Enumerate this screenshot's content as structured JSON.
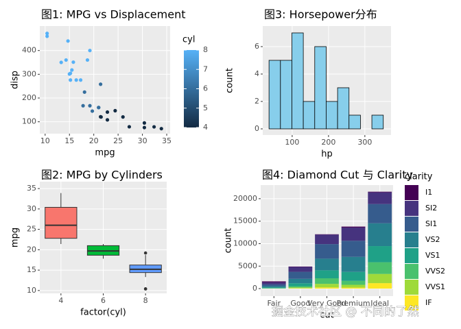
{
  "chart_data": [
    {
      "type": "scatter",
      "title": "图1: MPG vs Displacement",
      "x_label": "mpg",
      "y_label": "disp",
      "x": [
        21,
        21,
        22.8,
        21.4,
        18.7,
        18.1,
        14.3,
        24.4,
        22.8,
        19.2,
        17.8,
        16.4,
        17.3,
        15.2,
        10.4,
        10.4,
        14.7,
        32.4,
        30.4,
        33.9,
        21.5,
        15.5,
        15.2,
        13.3,
        19.2,
        27.3,
        26,
        30.4,
        15.8,
        19.7,
        15,
        21.4
      ],
      "values": [
        160,
        160,
        108,
        258,
        360,
        225,
        360,
        146.7,
        140.8,
        167.6,
        167.6,
        275.8,
        275.8,
        275.8,
        472,
        460,
        440,
        78.7,
        75.7,
        71.1,
        120.1,
        318,
        304,
        350,
        400,
        79,
        120.3,
        95.1,
        351,
        145,
        301,
        121
      ],
      "color_values": [
        6,
        6,
        4,
        6,
        8,
        6,
        8,
        4,
        4,
        6,
        6,
        8,
        8,
        8,
        8,
        8,
        8,
        4,
        4,
        4,
        4,
        8,
        8,
        8,
        8,
        4,
        4,
        4,
        8,
        6,
        8,
        4
      ],
      "color_scale": {
        "title": "cyl",
        "low": "#132B43",
        "high": "#56B1F7",
        "lim": [
          4,
          8
        ],
        "ticks": [
          4,
          5,
          6,
          7,
          8
        ]
      },
      "xlim": [
        8.9,
        35.7
      ],
      "xticks": [
        10,
        15,
        20,
        25,
        30,
        35
      ],
      "ylim": [
        50,
        503
      ],
      "yticks": [
        100,
        200,
        300,
        400
      ],
      "grid": true
    },
    {
      "type": "box",
      "title": "图2: MPG by Cylinders",
      "x_label": "factor(cyl)",
      "y_label": "mpg",
      "categories": [
        "4",
        "6",
        "8"
      ],
      "colors": [
        "#F8766D",
        "#00BA38",
        "#619CFF"
      ],
      "boxes": [
        {
          "min": 21.4,
          "q1": 22.8,
          "median": 26,
          "q3": 30.4,
          "max": 33.9,
          "outliers": []
        },
        {
          "min": 17.8,
          "q1": 18.65,
          "median": 19.7,
          "q3": 21,
          "max": 21.4,
          "outliers": []
        },
        {
          "min": 13.3,
          "q1": 14.4,
          "median": 15.2,
          "q3": 16.25,
          "max": 18.7,
          "outliers": [
            10.4,
            10.4,
            19.2
          ]
        }
      ],
      "ylim": [
        9.3,
        36.7
      ],
      "yticks": [
        10,
        15,
        20,
        25,
        30,
        35
      ],
      "grid": true
    },
    {
      "type": "histogram",
      "title": "图3: Horsepower分布",
      "x_label": "hp",
      "y_label": "count",
      "bins": [
        36.28,
        67.72,
        99.17,
        130.61,
        162.06,
        193.5,
        224.94,
        256.39,
        287.83,
        319.28,
        350.72
      ],
      "values": [
        5,
        5,
        7,
        2,
        6,
        2,
        3,
        1,
        0,
        1
      ],
      "color": "#87CEEB",
      "edge_color": "#000000",
      "xlim": [
        19,
        372
      ],
      "xticks": [
        100,
        200,
        300
      ],
      "ylim": [
        -0.45,
        7.5
      ],
      "yticks": [
        0,
        2,
        4,
        6
      ],
      "grid": true
    },
    {
      "type": "stacked_bar",
      "title": "图4: Diamond Cut 与 Clarity",
      "x_label": "cut",
      "y_label": "count",
      "legend_title": "clarity",
      "categories": [
        "Fair",
        "Good",
        "Very Good",
        "Premium",
        "Ideal"
      ],
      "series": [
        {
          "name": "I1",
          "color": "#440154",
          "values": [
            210,
            96,
            84,
            205,
            146
          ]
        },
        {
          "name": "SI2",
          "color": "#46337E",
          "values": [
            466,
            1081,
            2100,
            2949,
            2598
          ]
        },
        {
          "name": "SI1",
          "color": "#365C8D",
          "values": [
            408,
            1560,
            3240,
            3575,
            4282
          ]
        },
        {
          "name": "VS2",
          "color": "#277F8E",
          "values": [
            261,
            978,
            2591,
            3357,
            5071
          ]
        },
        {
          "name": "VS1",
          "color": "#1FA187",
          "values": [
            170,
            648,
            1775,
            1989,
            3589
          ]
        },
        {
          "name": "VVS2",
          "color": "#4AC16D",
          "values": [
            69,
            286,
            1235,
            870,
            2606
          ]
        },
        {
          "name": "VVS1",
          "color": "#9FDA3A",
          "values": [
            17,
            186,
            789,
            616,
            2047
          ]
        },
        {
          "name": "IF",
          "color": "#FDE725",
          "values": [
            9,
            71,
            268,
            230,
            1212
          ]
        }
      ],
      "ylim": [
        -1670,
        23030
      ],
      "yticks": [
        0,
        5000,
        10000,
        15000,
        20000
      ],
      "grid": true
    }
  ],
  "watermark": "掘金技术社区 @ 不同的了然"
}
